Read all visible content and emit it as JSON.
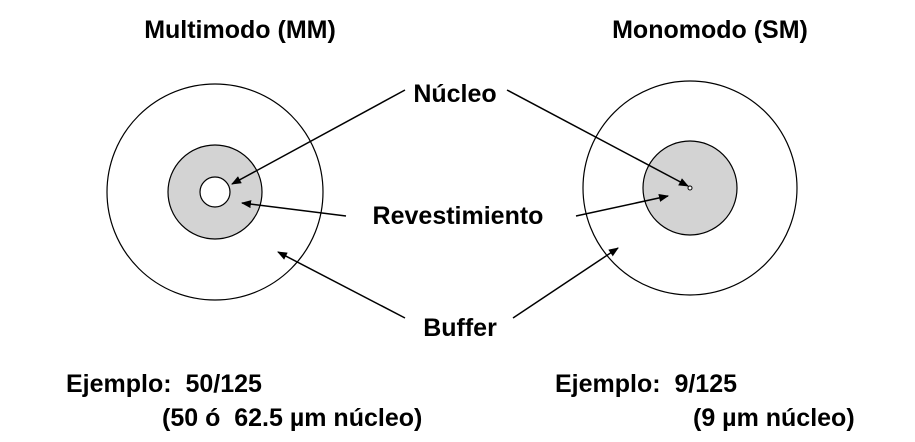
{
  "titles": {
    "multimode": "Multimodo (MM)",
    "singlemode": "Monomodo (SM)"
  },
  "labels": {
    "core": "Núcleo",
    "cladding": "Revestimiento",
    "buffer": "Buffer"
  },
  "examples": {
    "multimode_line1": "Ejemplo:  50/125",
    "multimode_line2": "(50 ó  62.5 µm núcleo)",
    "singlemode_line1": "Ejemplo:  9/125",
    "singlemode_line2": "(9 µm núcleo)"
  },
  "colors": {
    "cladding_fill": "#d3d3d3",
    "stroke": "#000000",
    "background": "#ffffff"
  }
}
